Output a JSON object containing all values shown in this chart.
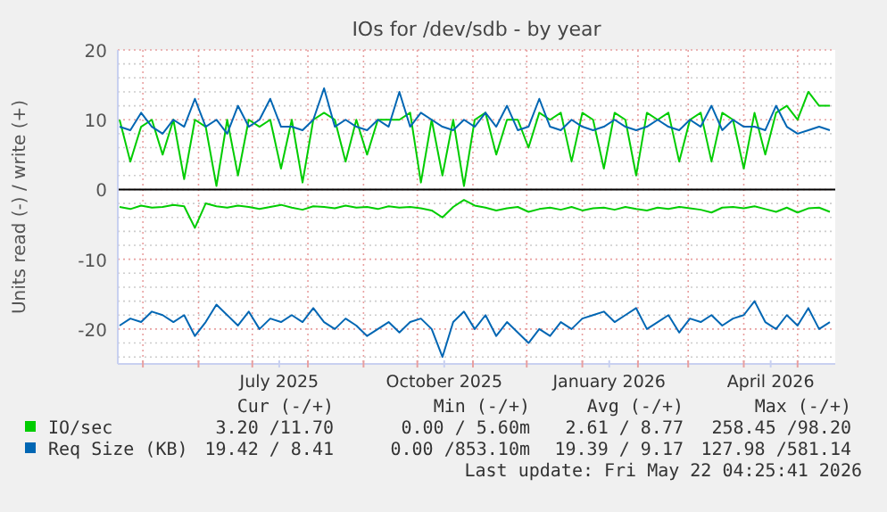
{
  "chart_data": {
    "type": "line",
    "title": "IOs for /dev/sdb - by year",
    "ylabel": "Units read (-) / write (+)",
    "x": [
      "2025-04-18",
      "2025-04-24",
      "2025-04-30",
      "2025-05-06",
      "2025-05-12",
      "2025-05-18",
      "2025-05-24",
      "2025-05-30",
      "2025-06-05",
      "2025-06-11",
      "2025-06-17",
      "2025-06-23",
      "2025-06-29",
      "2025-07-05",
      "2025-07-11",
      "2025-07-17",
      "2025-07-23",
      "2025-07-29",
      "2025-08-04",
      "2025-08-10",
      "2025-08-16",
      "2025-08-22",
      "2025-08-28",
      "2025-09-03",
      "2025-09-09",
      "2025-09-15",
      "2025-09-21",
      "2025-09-27",
      "2025-10-03",
      "2025-10-09",
      "2025-10-15",
      "2025-10-21",
      "2025-10-27",
      "2025-11-02",
      "2025-11-08",
      "2025-11-14",
      "2025-11-20",
      "2025-11-26",
      "2025-12-02",
      "2025-12-08",
      "2025-12-14",
      "2025-12-20",
      "2025-12-26",
      "2026-01-01",
      "2026-01-07",
      "2026-01-13",
      "2026-01-19",
      "2026-01-25",
      "2026-01-31",
      "2026-02-06",
      "2026-02-12",
      "2026-02-18",
      "2026-02-24",
      "2026-03-02",
      "2026-03-08",
      "2026-03-14",
      "2026-03-20",
      "2026-03-26",
      "2026-04-01",
      "2026-04-07",
      "2026-04-13",
      "2026-04-19",
      "2026-04-25",
      "2026-05-01",
      "2026-05-07",
      "2026-05-13",
      "2026-05-19"
    ],
    "series": [
      {
        "color": "#00cc00",
        "values": [
          -2.5,
          -2.8,
          -2.3,
          -2.6,
          -2.5,
          -2.2,
          -2.4,
          -5.5,
          -2,
          -2.4,
          -2.6,
          -2.3,
          -2.5,
          -2.8,
          -2.5,
          -2.2,
          -2.6,
          -2.9,
          -2.4,
          -2.5,
          -2.7,
          -2.3,
          -2.6,
          -2.5,
          -2.8,
          -2.4,
          -2.6,
          -2.5,
          -2.7,
          -3,
          -4,
          -2.5,
          -1.5,
          -2.3,
          -2.6,
          -3,
          -2.7,
          -2.5,
          -3.2,
          -2.8,
          -2.6,
          -2.9,
          -2.5,
          -3,
          -2.7,
          -2.6,
          -2.9,
          -2.5,
          -2.8,
          -3,
          -2.6,
          -2.8,
          -2.5,
          -2.7,
          -2.9,
          -3.3,
          -2.6,
          -2.5,
          -2.7,
          -2.4,
          -2.8,
          -3.2,
          -2.6,
          -3.3,
          -2.7,
          -2.6,
          -3.2
        ]
      },
      {
        "name": "IO/sec",
        "color": "#00cc00",
        "values": [
          10,
          4,
          9,
          10,
          5,
          10,
          1.5,
          10,
          9,
          0.5,
          10,
          2,
          10,
          9,
          10,
          3,
          10,
          1,
          10,
          11,
          10,
          4,
          10,
          5,
          10,
          10,
          10,
          11,
          1,
          10,
          2,
          10,
          0.5,
          10,
          11,
          5,
          10,
          10,
          6,
          11,
          10,
          11,
          4,
          11,
          10,
          3,
          11,
          10,
          2,
          11,
          10,
          11,
          4,
          10,
          11,
          4,
          11,
          10,
          3,
          11,
          5,
          11,
          12,
          10,
          14,
          12,
          12
        ]
      },
      {
        "color": "#0066b3",
        "values": [
          -19.5,
          -18.5,
          -19,
          -17.5,
          -18,
          -19,
          -18,
          -21,
          -19,
          -16.5,
          -18,
          -19.5,
          -17.5,
          -20,
          -18.5,
          -19,
          -18,
          -19,
          -17,
          -19,
          -20,
          -18.5,
          -19.5,
          -21,
          -20,
          -19,
          -20.5,
          -19,
          -18.5,
          -20,
          -24,
          -19,
          -17.5,
          -20,
          -18,
          -21,
          -19,
          -20.5,
          -22,
          -20,
          -21,
          -19,
          -20,
          -18.5,
          -18,
          -17.5,
          -19,
          -18,
          -17,
          -20,
          -19,
          -18,
          -20.5,
          -18.5,
          -19,
          -18,
          -19.5,
          -18.5,
          -18,
          -16,
          -19,
          -20,
          -18,
          -19.5,
          -17,
          -20,
          -19
        ]
      },
      {
        "name": "Req Size (KB)",
        "color": "#0066b3",
        "values": [
          9,
          8.5,
          11,
          9,
          8,
          10,
          9,
          13,
          9,
          10,
          8,
          12,
          9,
          10,
          13,
          9,
          9,
          8.5,
          10,
          14.5,
          9,
          10,
          9,
          8.5,
          10,
          9,
          14,
          9,
          11,
          10,
          9,
          8.5,
          10,
          9,
          11,
          9,
          12,
          8.5,
          9,
          13,
          9,
          8.5,
          10,
          9,
          8.5,
          9,
          10,
          9,
          8.5,
          9,
          10,
          9,
          8.5,
          10,
          9,
          12,
          8.5,
          10,
          9,
          9,
          8.5,
          12,
          9,
          8,
          8.5,
          9,
          8.5
        ]
      }
    ],
    "xlim": [
      "2025-04-17",
      "2026-05-22"
    ],
    "xticks": [
      {
        "value": "2025-05-01",
        "label": null
      },
      {
        "value": "2025-06-01",
        "label": null
      },
      {
        "value": "2025-07-01",
        "label": null
      },
      {
        "value": "2025-07-16",
        "label": "July 2025"
      },
      {
        "value": "2025-08-01",
        "label": null
      },
      {
        "value": "2025-09-01",
        "label": null
      },
      {
        "value": "2025-10-01",
        "label": null
      },
      {
        "value": "2025-10-16",
        "label": "October 2025"
      },
      {
        "value": "2025-11-01",
        "label": null
      },
      {
        "value": "2025-12-01",
        "label": null
      },
      {
        "value": "2026-01-01",
        "label": null
      },
      {
        "value": "2026-01-16",
        "label": "January 2026"
      },
      {
        "value": "2026-02-01",
        "label": null
      },
      {
        "value": "2026-03-01",
        "label": null
      },
      {
        "value": "2026-04-01",
        "label": null
      },
      {
        "value": "2026-04-16",
        "label": "April 2026"
      },
      {
        "value": "2026-05-01",
        "label": null
      }
    ],
    "ylim": [
      -25,
      20
    ],
    "yticks": [
      {
        "value": -24,
        "label": null
      },
      {
        "value": -22,
        "label": null
      },
      -20,
      {
        "value": -18,
        "label": null
      },
      {
        "value": -16,
        "label": null
      },
      {
        "value": -14,
        "label": null
      },
      {
        "value": -12,
        "label": null
      },
      -10,
      {
        "value": -8,
        "label": null
      },
      {
        "value": -6,
        "label": null
      },
      {
        "value": -4,
        "label": null
      },
      {
        "value": -2,
        "label": null
      },
      0,
      {
        "value": 2,
        "label": null
      },
      {
        "value": 4,
        "label": null
      },
      {
        "value": 6,
        "label": null
      },
      {
        "value": 8,
        "label": null
      },
      10,
      {
        "value": 12,
        "label": null
      },
      {
        "value": 14,
        "label": null
      },
      {
        "value": 16,
        "label": null
      },
      {
        "value": 18,
        "label": null
      },
      20
    ],
    "grid": true,
    "ref_lines": [
      {
        "axis": "y",
        "value": 0,
        "color": "#000000"
      }
    ],
    "legend": "bottom",
    "annotations": [
      "Cur (-/+)",
      "Min (-/+)",
      "Avg (-/+)",
      "Max (-/+)",
      "3.20 /11.70",
      "0.00 / 5.60m",
      "2.61 / 8.77",
      "258.45 /98.20",
      "19.42 / 8.41",
      "0.00 /853.10m",
      "19.39 / 9.17",
      "127.98 /581.14",
      "Last update: Fri May 22 04:25:41 2026"
    ]
  }
}
